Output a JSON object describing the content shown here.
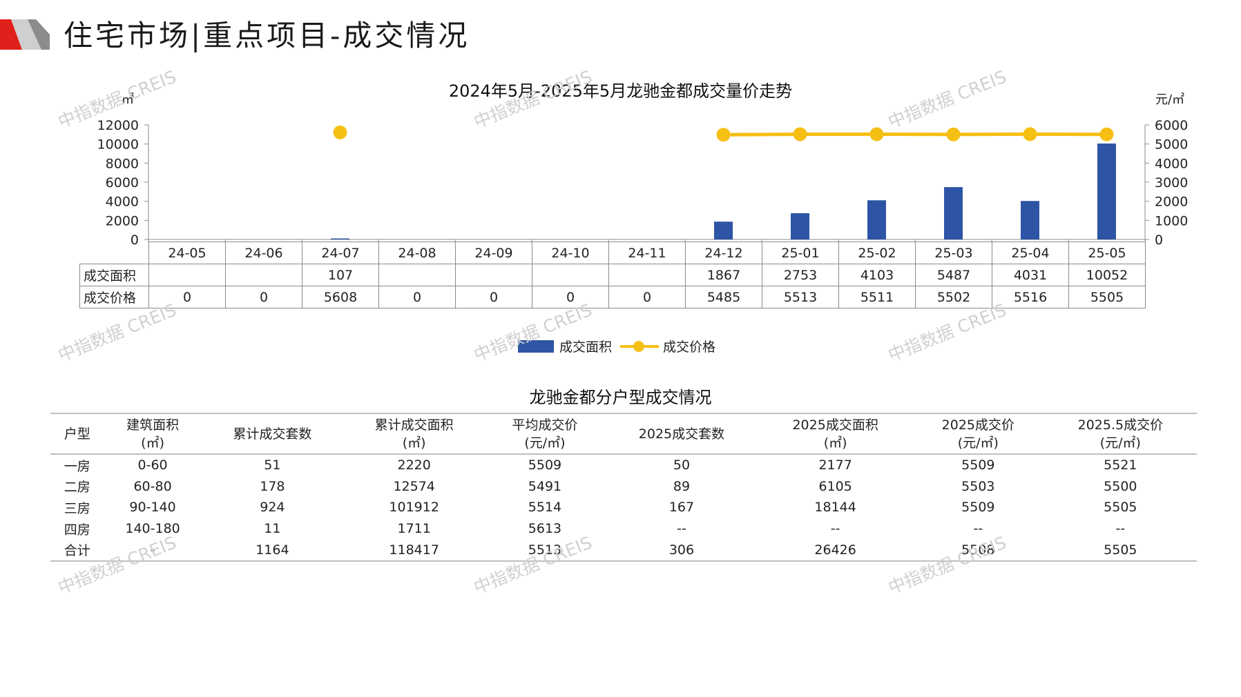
{
  "header": {
    "title": "住宅市场|重点项目-成交情况"
  },
  "colors": {
    "bar": "#2e55a5",
    "line": "#f5bf14",
    "brand_red": "#e0201b",
    "brand_gray": "#9b9b9b"
  },
  "chart_data": {
    "type": "bar+line",
    "title": "2024年5月-2025年5月龙驰金都成交量价走势",
    "categories": [
      "24-05",
      "24-06",
      "24-07",
      "24-08",
      "24-09",
      "24-10",
      "24-11",
      "24-12",
      "25-01",
      "25-02",
      "25-03",
      "25-04",
      "25-05"
    ],
    "series": [
      {
        "name": "成交面积",
        "type": "bar",
        "axis": "left",
        "values": [
          null,
          null,
          107,
          null,
          null,
          null,
          null,
          1867,
          2753,
          4103,
          5487,
          4031,
          10052
        ]
      },
      {
        "name": "成交价格",
        "type": "line",
        "axis": "right",
        "values": [
          0,
          0,
          5608,
          0,
          0,
          0,
          0,
          5485,
          5513,
          5511,
          5502,
          5516,
          5505
        ]
      }
    ],
    "y_left": {
      "unit": "㎡",
      "ylim": [
        0,
        12000
      ],
      "ticks": [
        "12000",
        "10000",
        "8000",
        "6000",
        "4000",
        "2000",
        "0"
      ]
    },
    "y_right": {
      "unit": "元/㎡",
      "ylim": [
        0,
        6000
      ],
      "ticks": [
        "6000",
        "5000",
        "4000",
        "3000",
        "2000",
        "1000",
        "0"
      ]
    },
    "row_labels": [
      "成交面积",
      "成交价格"
    ],
    "area_cells": [
      "",
      "",
      "107",
      "",
      "",
      "",
      "",
      "1867",
      "2753",
      "4103",
      "5487",
      "4031",
      "10052"
    ],
    "price_cells": [
      "0",
      "0",
      "5608",
      "0",
      "0",
      "0",
      "0",
      "5485",
      "5513",
      "5511",
      "5502",
      "5516",
      "5505"
    ],
    "legend": [
      "成交面积",
      "成交价格"
    ],
    "legend_position": "bottom",
    "grid": false
  },
  "table": {
    "title": "龙驰金都分户型成交情况",
    "headers": [
      {
        "line1": "户型",
        "line2": ""
      },
      {
        "line1": "建筑面积",
        "line2": "(㎡)"
      },
      {
        "line1": "累计成交套数",
        "line2": ""
      },
      {
        "line1": "累计成交面积",
        "line2": "(㎡)"
      },
      {
        "line1": "平均成交价",
        "line2": "(元/㎡)"
      },
      {
        "line1": "2025成交套数",
        "line2": ""
      },
      {
        "line1": "2025成交面积",
        "line2": "(㎡)"
      },
      {
        "line1": "2025成交价",
        "line2": "(元/㎡)"
      },
      {
        "line1": "2025.5成交价",
        "line2": "(元/㎡)"
      }
    ],
    "rows": [
      [
        "一房",
        "0-60",
        "51",
        "2220",
        "5509",
        "50",
        "2177",
        "5509",
        "5521"
      ],
      [
        "二房",
        "60-80",
        "178",
        "12574",
        "5491",
        "89",
        "6105",
        "5503",
        "5500"
      ],
      [
        "三房",
        "90-140",
        "924",
        "101912",
        "5514",
        "167",
        "18144",
        "5509",
        "5505"
      ],
      [
        "四房",
        "140-180",
        "11",
        "1711",
        "5613",
        "--",
        "--",
        "--",
        "--"
      ],
      [
        "合计",
        "-",
        "1164",
        "118417",
        "5513",
        "306",
        "26426",
        "5508",
        "5505"
      ]
    ]
  },
  "watermark": "中指数据 CREIS"
}
